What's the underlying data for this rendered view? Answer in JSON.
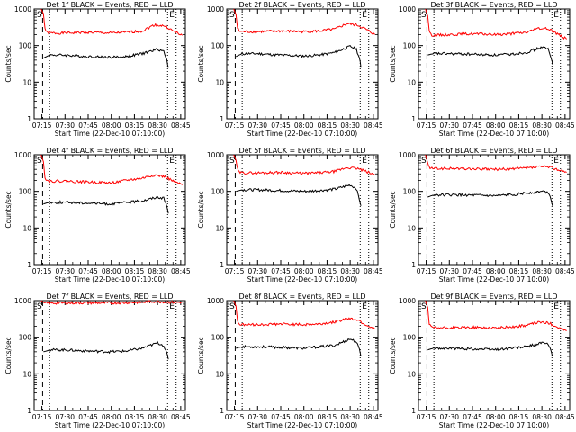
{
  "chart_data": [
    {
      "type": "line",
      "title": "Det 1f BLACK = Events, RED = LLD",
      "xlabel": "Start Time (22-Dec-10 07:10:00)",
      "ylabel": "Counts/sec",
      "yscale": "log",
      "ylim": [
        1,
        1000
      ],
      "xlim": [
        "07:10",
        "08:48"
      ],
      "x_ticks": [
        "07:15",
        "07:30",
        "07:45",
        "08:00",
        "08:15",
        "08:30",
        "08:45"
      ],
      "y_ticks": [
        "1",
        "10",
        "100",
        "1000"
      ],
      "markers": [
        {
          "label": "S",
          "time": "07:15:30",
          "style": "dashed"
        },
        {
          "label": "E",
          "time": "08:36:30",
          "style": "dotted"
        }
      ],
      "dotted_lines": [
        "07:20",
        "08:42"
      ],
      "series": [
        {
          "color": "#ff0000",
          "x": [
            "07:14:30",
            "07:16",
            "07:17",
            "07:18",
            "07:20",
            "07:30",
            "07:45",
            "08:00",
            "08:10",
            "08:20",
            "08:28",
            "08:35",
            "08:40",
            "08:46"
          ],
          "values": [
            1000,
            750,
            300,
            230,
            220,
            220,
            230,
            220,
            230,
            250,
            370,
            340,
            250,
            190
          ]
        },
        {
          "color": "#000000",
          "x": [
            "07:16",
            "07:18",
            "07:20",
            "07:30",
            "07:45",
            "08:00",
            "08:10",
            "08:20",
            "08:30",
            "08:34",
            "08:36",
            "08:37"
          ],
          "values": [
            45,
            50,
            55,
            55,
            50,
            48,
            50,
            60,
            80,
            70,
            40,
            25
          ]
        }
      ]
    },
    {
      "type": "line",
      "title": "Det 2f BLACK = Events, RED = LLD",
      "xlabel": "Start Time (22-Dec-10 07:10:00)",
      "ylabel": "Counts/sec",
      "yscale": "log",
      "ylim": [
        1,
        1000
      ],
      "xlim": [
        "07:10",
        "08:48"
      ],
      "x_ticks": [
        "07:15",
        "07:30",
        "07:45",
        "08:00",
        "08:15",
        "08:30",
        "08:45"
      ],
      "y_ticks": [
        "1",
        "10",
        "100",
        "1000"
      ],
      "markers": [
        {
          "label": "S",
          "time": "07:15:30",
          "style": "dashed"
        },
        {
          "label": "E",
          "time": "08:36:30",
          "style": "dotted"
        }
      ],
      "dotted_lines": [
        "07:20",
        "08:42"
      ],
      "series": [
        {
          "color": "#ff0000",
          "x": [
            "07:14:30",
            "07:16",
            "07:17",
            "07:18",
            "07:20",
            "07:30",
            "07:45",
            "08:00",
            "08:10",
            "08:20",
            "08:28",
            "08:35",
            "08:40",
            "08:46"
          ],
          "values": [
            1000,
            700,
            300,
            250,
            240,
            240,
            250,
            240,
            250,
            280,
            400,
            360,
            280,
            200
          ]
        },
        {
          "color": "#000000",
          "x": [
            "07:16",
            "07:18",
            "07:20",
            "07:30",
            "07:45",
            "08:00",
            "08:10",
            "08:20",
            "08:30",
            "08:34",
            "08:36",
            "08:37"
          ],
          "values": [
            50,
            55,
            60,
            60,
            55,
            52,
            55,
            65,
            95,
            80,
            45,
            25
          ]
        }
      ]
    },
    {
      "type": "line",
      "title": "Det 3f BLACK = Events, RED = LLD",
      "xlabel": "Start Time (22-Dec-10 07:10:00)",
      "ylabel": "Counts/sec",
      "yscale": "log",
      "ylim": [
        1,
        1000
      ],
      "xlim": [
        "07:10",
        "08:48"
      ],
      "x_ticks": [
        "07:15",
        "07:30",
        "07:45",
        "08:00",
        "08:15",
        "08:30",
        "08:45"
      ],
      "y_ticks": [
        "1",
        "10",
        "100",
        "1000"
      ],
      "markers": [
        {
          "label": "S",
          "time": "07:15:30",
          "style": "dashed"
        },
        {
          "label": "E",
          "time": "08:36:30",
          "style": "dotted"
        }
      ],
      "dotted_lines": [
        "07:20",
        "08:42"
      ],
      "series": [
        {
          "color": "#ff0000",
          "x": [
            "07:14:30",
            "07:16",
            "07:17",
            "07:18",
            "07:20",
            "07:30",
            "07:45",
            "08:00",
            "08:10",
            "08:20",
            "08:28",
            "08:35",
            "08:40",
            "08:46"
          ],
          "values": [
            1000,
            650,
            260,
            200,
            190,
            200,
            210,
            200,
            210,
            230,
            300,
            280,
            210,
            150
          ]
        },
        {
          "color": "#000000",
          "x": [
            "07:16",
            "07:18",
            "07:20",
            "07:30",
            "07:45",
            "08:00",
            "08:10",
            "08:20",
            "08:30",
            "08:34",
            "08:36",
            "08:37"
          ],
          "values": [
            55,
            58,
            60,
            60,
            58,
            55,
            58,
            65,
            90,
            80,
            45,
            30
          ]
        }
      ]
    },
    {
      "type": "line",
      "title": "Det 4f BLACK = Events, RED = LLD",
      "xlabel": "Start Time (22-Dec-10 07:10:00)",
      "ylabel": "Counts/sec",
      "yscale": "log",
      "ylim": [
        1,
        1000
      ],
      "xlim": [
        "07:10",
        "08:48"
      ],
      "x_ticks": [
        "07:15",
        "07:30",
        "07:45",
        "08:00",
        "08:15",
        "08:30",
        "08:45"
      ],
      "y_ticks": [
        "1",
        "10",
        "100",
        "1000"
      ],
      "markers": [
        {
          "label": "S",
          "time": "07:15:30",
          "style": "dashed"
        },
        {
          "label": "E",
          "time": "08:36:30",
          "style": "dotted"
        }
      ],
      "dotted_lines": [
        "07:20",
        "08:42"
      ],
      "series": [
        {
          "color": "#ff0000",
          "x": [
            "07:14:30",
            "07:16",
            "07:17",
            "07:18",
            "07:20",
            "07:30",
            "07:45",
            "08:00",
            "08:10",
            "08:20",
            "08:28",
            "08:35",
            "08:40",
            "08:46"
          ],
          "values": [
            1000,
            650,
            250,
            200,
            190,
            190,
            180,
            170,
            200,
            230,
            280,
            250,
            190,
            150
          ]
        },
        {
          "color": "#000000",
          "x": [
            "07:16",
            "07:18",
            "07:20",
            "07:30",
            "07:45",
            "08:00",
            "08:10",
            "08:20",
            "08:30",
            "08:34",
            "08:36",
            "08:37"
          ],
          "values": [
            45,
            48,
            50,
            50,
            48,
            45,
            50,
            55,
            70,
            65,
            40,
            25
          ]
        }
      ]
    },
    {
      "type": "line",
      "title": "Det 5f BLACK = Events, RED = LLD",
      "xlabel": "Start Time (22-Dec-10 07:10:00)",
      "ylabel": "Counts/sec",
      "yscale": "log",
      "ylim": [
        1,
        1000
      ],
      "xlim": [
        "07:10",
        "08:48"
      ],
      "x_ticks": [
        "07:15",
        "07:30",
        "07:45",
        "08:00",
        "08:15",
        "08:30",
        "08:45"
      ],
      "y_ticks": [
        "1",
        "10",
        "100",
        "1000"
      ],
      "markers": [
        {
          "label": "S",
          "time": "07:15:30",
          "style": "dashed"
        },
        {
          "label": "E",
          "time": "08:36:30",
          "style": "dotted"
        }
      ],
      "dotted_lines": [
        "07:20",
        "08:42"
      ],
      "series": [
        {
          "color": "#ff0000",
          "x": [
            "07:14:30",
            "07:16",
            "07:17",
            "07:18",
            "07:20",
            "07:30",
            "07:45",
            "08:00",
            "08:10",
            "08:20",
            "08:28",
            "08:35",
            "08:40",
            "08:46"
          ],
          "values": [
            1000,
            700,
            400,
            330,
            320,
            320,
            330,
            310,
            320,
            350,
            450,
            420,
            350,
            280
          ]
        },
        {
          "color": "#000000",
          "x": [
            "07:16",
            "07:18",
            "07:20",
            "07:30",
            "07:45",
            "08:00",
            "08:10",
            "08:20",
            "08:30",
            "08:34",
            "08:36",
            "08:37"
          ],
          "values": [
            100,
            105,
            110,
            110,
            105,
            100,
            105,
            115,
            150,
            120,
            60,
            40
          ]
        }
      ]
    },
    {
      "type": "line",
      "title": "Det 6f BLACK = Events, RED = LLD",
      "xlabel": "Start Time (22-Dec-10 07:10:00)",
      "ylabel": "Counts/sec",
      "yscale": "log",
      "ylim": [
        1,
        1000
      ],
      "xlim": [
        "07:10",
        "08:48"
      ],
      "x_ticks": [
        "07:15",
        "07:30",
        "07:45",
        "08:00",
        "08:15",
        "08:30",
        "08:45"
      ],
      "y_ticks": [
        "1",
        "10",
        "100",
        "1000"
      ],
      "markers": [
        {
          "label": "S",
          "time": "07:15:30",
          "style": "dashed"
        },
        {
          "label": "E",
          "time": "08:36:30",
          "style": "dotted"
        }
      ],
      "dotted_lines": [
        "07:20",
        "08:42"
      ],
      "series": [
        {
          "color": "#ff0000",
          "x": [
            "07:14:30",
            "07:16",
            "07:17",
            "07:18",
            "07:20",
            "07:30",
            "07:45",
            "08:00",
            "08:10",
            "08:20",
            "08:28",
            "08:35",
            "08:40",
            "08:46"
          ],
          "values": [
            1000,
            600,
            450,
            430,
            420,
            420,
            410,
            400,
            410,
            430,
            470,
            460,
            400,
            330
          ]
        },
        {
          "color": "#000000",
          "x": [
            "07:16",
            "07:18",
            "07:20",
            "07:30",
            "07:45",
            "08:00",
            "08:10",
            "08:20",
            "08:30",
            "08:34",
            "08:36",
            "08:37"
          ],
          "values": [
            70,
            75,
            80,
            80,
            78,
            75,
            80,
            90,
            100,
            95,
            60,
            40
          ]
        }
      ]
    },
    {
      "type": "line",
      "title": "Det 7f BLACK = Events, RED = LLD",
      "xlabel": "Start Time (22-Dec-10 07:10:00)",
      "ylabel": "Counts/sec",
      "yscale": "log",
      "ylim": [
        1,
        1000
      ],
      "xlim": [
        "07:10",
        "08:48"
      ],
      "x_ticks": [
        "07:15",
        "07:30",
        "07:45",
        "08:00",
        "08:15",
        "08:30",
        "08:45"
      ],
      "y_ticks": [
        "1",
        "10",
        "100",
        "1000"
      ],
      "markers": [
        {
          "label": "S",
          "time": "07:15:30",
          "style": "dashed"
        },
        {
          "label": "E",
          "time": "08:36:30",
          "style": "dotted"
        }
      ],
      "dotted_lines": [
        "07:20",
        "08:42"
      ],
      "series": [
        {
          "color": "#ff0000",
          "x": [
            "07:14:30",
            "07:16",
            "07:17",
            "07:18",
            "07:20",
            "07:30",
            "07:45",
            "08:00",
            "08:10",
            "08:20",
            "08:28",
            "08:35",
            "08:40",
            "08:46"
          ],
          "values": [
            1000,
            900,
            850,
            850,
            850,
            860,
            870,
            860,
            880,
            900,
            950,
            920,
            900,
            900
          ]
        },
        {
          "color": "#000000",
          "x": [
            "07:16",
            "07:18",
            "07:20",
            "07:30",
            "07:45",
            "08:00",
            "08:10",
            "08:20",
            "08:30",
            "08:34",
            "08:36",
            "08:37"
          ],
          "values": [
            40,
            42,
            45,
            45,
            42,
            40,
            42,
            50,
            70,
            60,
            35,
            25
          ]
        }
      ]
    },
    {
      "type": "line",
      "title": "Det 8f BLACK = Events, RED = LLD",
      "xlabel": "Start Time (22-Dec-10 07:10:00)",
      "ylabel": "Counts/sec",
      "yscale": "log",
      "ylim": [
        1,
        1000
      ],
      "xlim": [
        "07:10",
        "08:48"
      ],
      "x_ticks": [
        "07:15",
        "07:30",
        "07:45",
        "08:00",
        "08:15",
        "08:30",
        "08:45"
      ],
      "y_ticks": [
        "1",
        "10",
        "100",
        "1000"
      ],
      "markers": [
        {
          "label": "S",
          "time": "07:15:30",
          "style": "dashed"
        },
        {
          "label": "E",
          "time": "08:36:30",
          "style": "dotted"
        }
      ],
      "dotted_lines": [
        "07:20",
        "08:42"
      ],
      "series": [
        {
          "color": "#ff0000",
          "x": [
            "07:14:30",
            "07:16",
            "07:17",
            "07:18",
            "07:20",
            "07:30",
            "07:45",
            "08:00",
            "08:10",
            "08:20",
            "08:28",
            "08:35",
            "08:40",
            "08:46"
          ],
          "values": [
            1000,
            700,
            280,
            230,
            220,
            220,
            230,
            220,
            230,
            260,
            330,
            300,
            220,
            170
          ]
        },
        {
          "color": "#000000",
          "x": [
            "07:16",
            "07:18",
            "07:20",
            "07:30",
            "07:45",
            "08:00",
            "08:10",
            "08:20",
            "08:30",
            "08:34",
            "08:36",
            "08:37"
          ],
          "values": [
            50,
            53,
            55,
            55,
            53,
            50,
            55,
            60,
            90,
            75,
            45,
            30
          ]
        }
      ]
    },
    {
      "type": "line",
      "title": "Det 9f BLACK = Events, RED = LLD",
      "xlabel": "Start Time (22-Dec-10 07:10:00)",
      "ylabel": "Counts/sec",
      "yscale": "log",
      "ylim": [
        1,
        1000
      ],
      "xlim": [
        "07:10",
        "08:48"
      ],
      "x_ticks": [
        "07:15",
        "07:30",
        "07:45",
        "08:00",
        "08:15",
        "08:30",
        "08:45"
      ],
      "y_ticks": [
        "1",
        "10",
        "100",
        "1000"
      ],
      "markers": [
        {
          "label": "S",
          "time": "07:15:30",
          "style": "dashed"
        },
        {
          "label": "E",
          "time": "08:36:30",
          "style": "dotted"
        }
      ],
      "dotted_lines": [
        "07:20",
        "08:42"
      ],
      "series": [
        {
          "color": "#ff0000",
          "x": [
            "07:14:30",
            "07:16",
            "07:17",
            "07:18",
            "07:20",
            "07:30",
            "07:45",
            "08:00",
            "08:10",
            "08:20",
            "08:28",
            "08:35",
            "08:40",
            "08:46"
          ],
          "values": [
            1000,
            650,
            230,
            190,
            180,
            180,
            185,
            180,
            190,
            210,
            260,
            240,
            190,
            150
          ]
        },
        {
          "color": "#000000",
          "x": [
            "07:16",
            "07:18",
            "07:20",
            "07:30",
            "07:45",
            "08:00",
            "08:10",
            "08:20",
            "08:30",
            "08:34",
            "08:36",
            "08:37"
          ],
          "values": [
            45,
            48,
            50,
            50,
            48,
            46,
            50,
            55,
            70,
            65,
            40,
            30
          ]
        }
      ]
    }
  ]
}
